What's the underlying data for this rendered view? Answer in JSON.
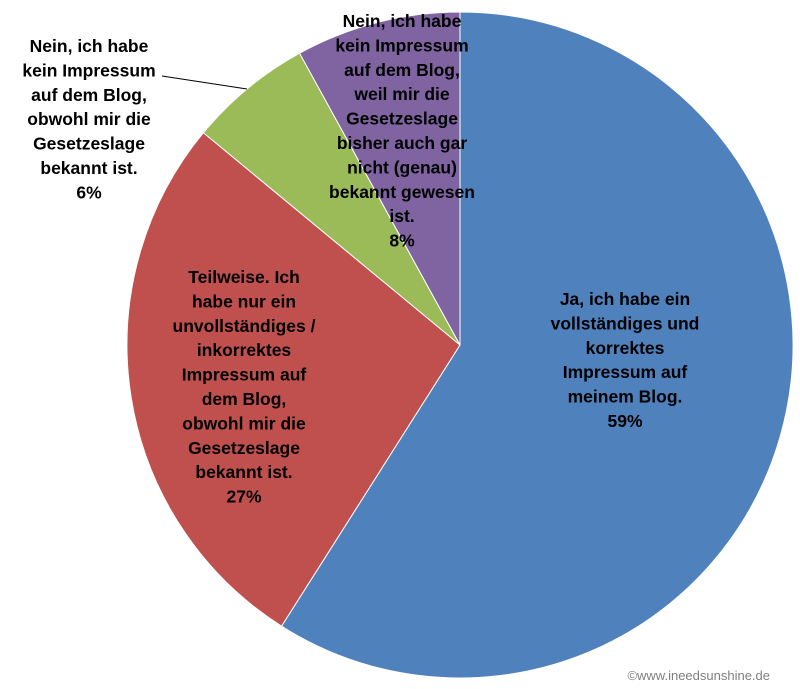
{
  "chart_data": {
    "type": "pie",
    "title": "",
    "start": "top",
    "direction": "clockwise",
    "slices": [
      {
        "label_lines": [
          "Ja, ich habe ein",
          "vollständiges und",
          "korrektes",
          "Impressum auf",
          "meinem Blog."
        ],
        "percent_label": "59%",
        "value": 59,
        "color": "#4f81bd"
      },
      {
        "label_lines": [
          "Teilweise. Ich",
          "habe nur ein",
          "unvollständiges /",
          "inkorrektes",
          "Impressum auf",
          "dem Blog,",
          "obwohl mir die",
          "Gesetzeslage",
          "bekannt ist."
        ],
        "percent_label": "27%",
        "value": 27,
        "color": "#c0504d"
      },
      {
        "label_lines": [
          "Nein, ich habe",
          "kein Impressum",
          "auf dem Blog,",
          "obwohl mir die",
          "Gesetzeslage",
          "bekannt ist."
        ],
        "percent_label": "6%",
        "value": 6,
        "color": "#9bbb59"
      },
      {
        "label_lines": [
          "Nein, ich habe",
          "kein Impressum",
          "auf dem Blog,",
          "weil mir die",
          "Gesetzeslage",
          "bisher auch gar",
          "nicht (genau)",
          "bekannt gewesen",
          "ist."
        ],
        "percent_label": "8%",
        "value": 8,
        "color": "#8064a2"
      }
    ]
  },
  "credit": "©www.ineedsunshine.de"
}
